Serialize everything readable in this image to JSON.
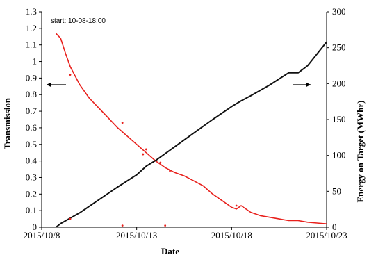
{
  "chart_data": {
    "type": "line",
    "title": "",
    "xlabel": "Date",
    "ylabel": "Transmission",
    "y2label": "Energy on Target (MWhr)",
    "annotation": "start: 10-08-18:00",
    "x_axis": {
      "type": "date",
      "range": [
        "2015-10-08",
        "2015-10-23"
      ],
      "ticks": [
        "2015-10-08",
        "2015-10-13",
        "2015-10-18",
        "2015-10-23"
      ],
      "tick_labels": [
        "2015/10/8",
        "2015/10/13",
        "2015/10/18",
        "2015/10/23"
      ]
    },
    "ylim": [
      0,
      1.3
    ],
    "y_ticks": [
      0,
      0.1,
      0.2,
      0.3,
      0.4,
      0.5,
      0.6,
      0.7,
      0.8,
      0.9,
      1,
      1.1,
      1.2,
      1.3
    ],
    "y_tick_labels": [
      "0",
      "0.1",
      "0.2",
      "0.3",
      "0.4",
      "0.5",
      "0.6",
      "0.7",
      "0.8",
      "0.9",
      "1",
      "1.1",
      "1.2",
      "1.3"
    ],
    "y2lim": [
      0,
      300
    ],
    "y2_ticks": [
      0,
      50,
      100,
      150,
      200,
      250,
      300
    ],
    "y2_tick_labels": [
      "0",
      "50",
      "100",
      "150",
      "200",
      "250",
      "300"
    ],
    "grid": false,
    "arrows": [
      {
        "direction": "left",
        "indicates_axis": "left"
      },
      {
        "direction": "right",
        "indicates_axis": "right"
      }
    ],
    "series": [
      {
        "axis": "left",
        "color": "#e8201c",
        "style": "line",
        "x": [
          "2015-10-08 18:00",
          "2015-10-09 00:00",
          "2015-10-09 06:00",
          "2015-10-09 12:00",
          "2015-10-10 00:00",
          "2015-10-10 12:00",
          "2015-10-11 00:00",
          "2015-10-11 12:00",
          "2015-10-12 00:00",
          "2015-10-12 12:00",
          "2015-10-13 00:00",
          "2015-10-13 12:00",
          "2015-10-14 00:00",
          "2015-10-14 12:00",
          "2015-10-15 00:00",
          "2015-10-15 12:00",
          "2015-10-16 00:00",
          "2015-10-16 12:00",
          "2015-10-17 00:00",
          "2015-10-17 12:00",
          "2015-10-18 00:00",
          "2015-10-18 06:00",
          "2015-10-18 12:00",
          "2015-10-19 00:00",
          "2015-10-19 12:00",
          "2015-10-20 00:00",
          "2015-10-20 12:00",
          "2015-10-21 00:00",
          "2015-10-21 12:00",
          "2015-10-22 00:00",
          "2015-10-22 12:00",
          "2015-10-23 00:00"
        ],
        "y": [
          1.17,
          1.14,
          1.05,
          0.97,
          0.86,
          0.78,
          0.72,
          0.66,
          0.6,
          0.55,
          0.5,
          0.45,
          0.4,
          0.36,
          0.33,
          0.31,
          0.28,
          0.25,
          0.2,
          0.16,
          0.12,
          0.11,
          0.13,
          0.09,
          0.07,
          0.06,
          0.05,
          0.04,
          0.04,
          0.03,
          0.025,
          0.02
        ]
      },
      {
        "axis": "right",
        "color": "#111111",
        "style": "line",
        "x": [
          "2015-10-08 18:00",
          "2015-10-09 00:00",
          "2015-10-10 00:00",
          "2015-10-11 00:00",
          "2015-10-12 00:00",
          "2015-10-13 00:00",
          "2015-10-13 12:00",
          "2015-10-14 00:00",
          "2015-10-15 00:00",
          "2015-10-16 00:00",
          "2015-10-17 00:00",
          "2015-10-18 00:00",
          "2015-10-18 12:00",
          "2015-10-19 00:00",
          "2015-10-20 00:00",
          "2015-10-21 00:00",
          "2015-10-21 12:00",
          "2015-10-22 00:00",
          "2015-10-23 00:00"
        ],
        "y": [
          0,
          5,
          20,
          38,
          56,
          73,
          85,
          93,
          112,
          131,
          150,
          168,
          176,
          183,
          198,
          215,
          215,
          225,
          258
        ]
      }
    ],
    "scatter": {
      "axis": "left",
      "color": "#e8201c",
      "x": [
        "2015-10-09 12:00",
        "2015-10-12 06:00",
        "2015-10-13 12:00",
        "2015-10-13 08:00",
        "2015-10-14 06:00",
        "2015-10-14 18:00",
        "2015-10-09 12:00",
        "2015-10-12 06:00",
        "2015-10-14 12:00",
        "2015-10-18 06:00"
      ],
      "y": [
        0.05,
        0.01,
        0.47,
        0.44,
        0.39,
        0.34,
        0.92,
        0.63,
        0.01,
        0.13
      ]
    }
  }
}
